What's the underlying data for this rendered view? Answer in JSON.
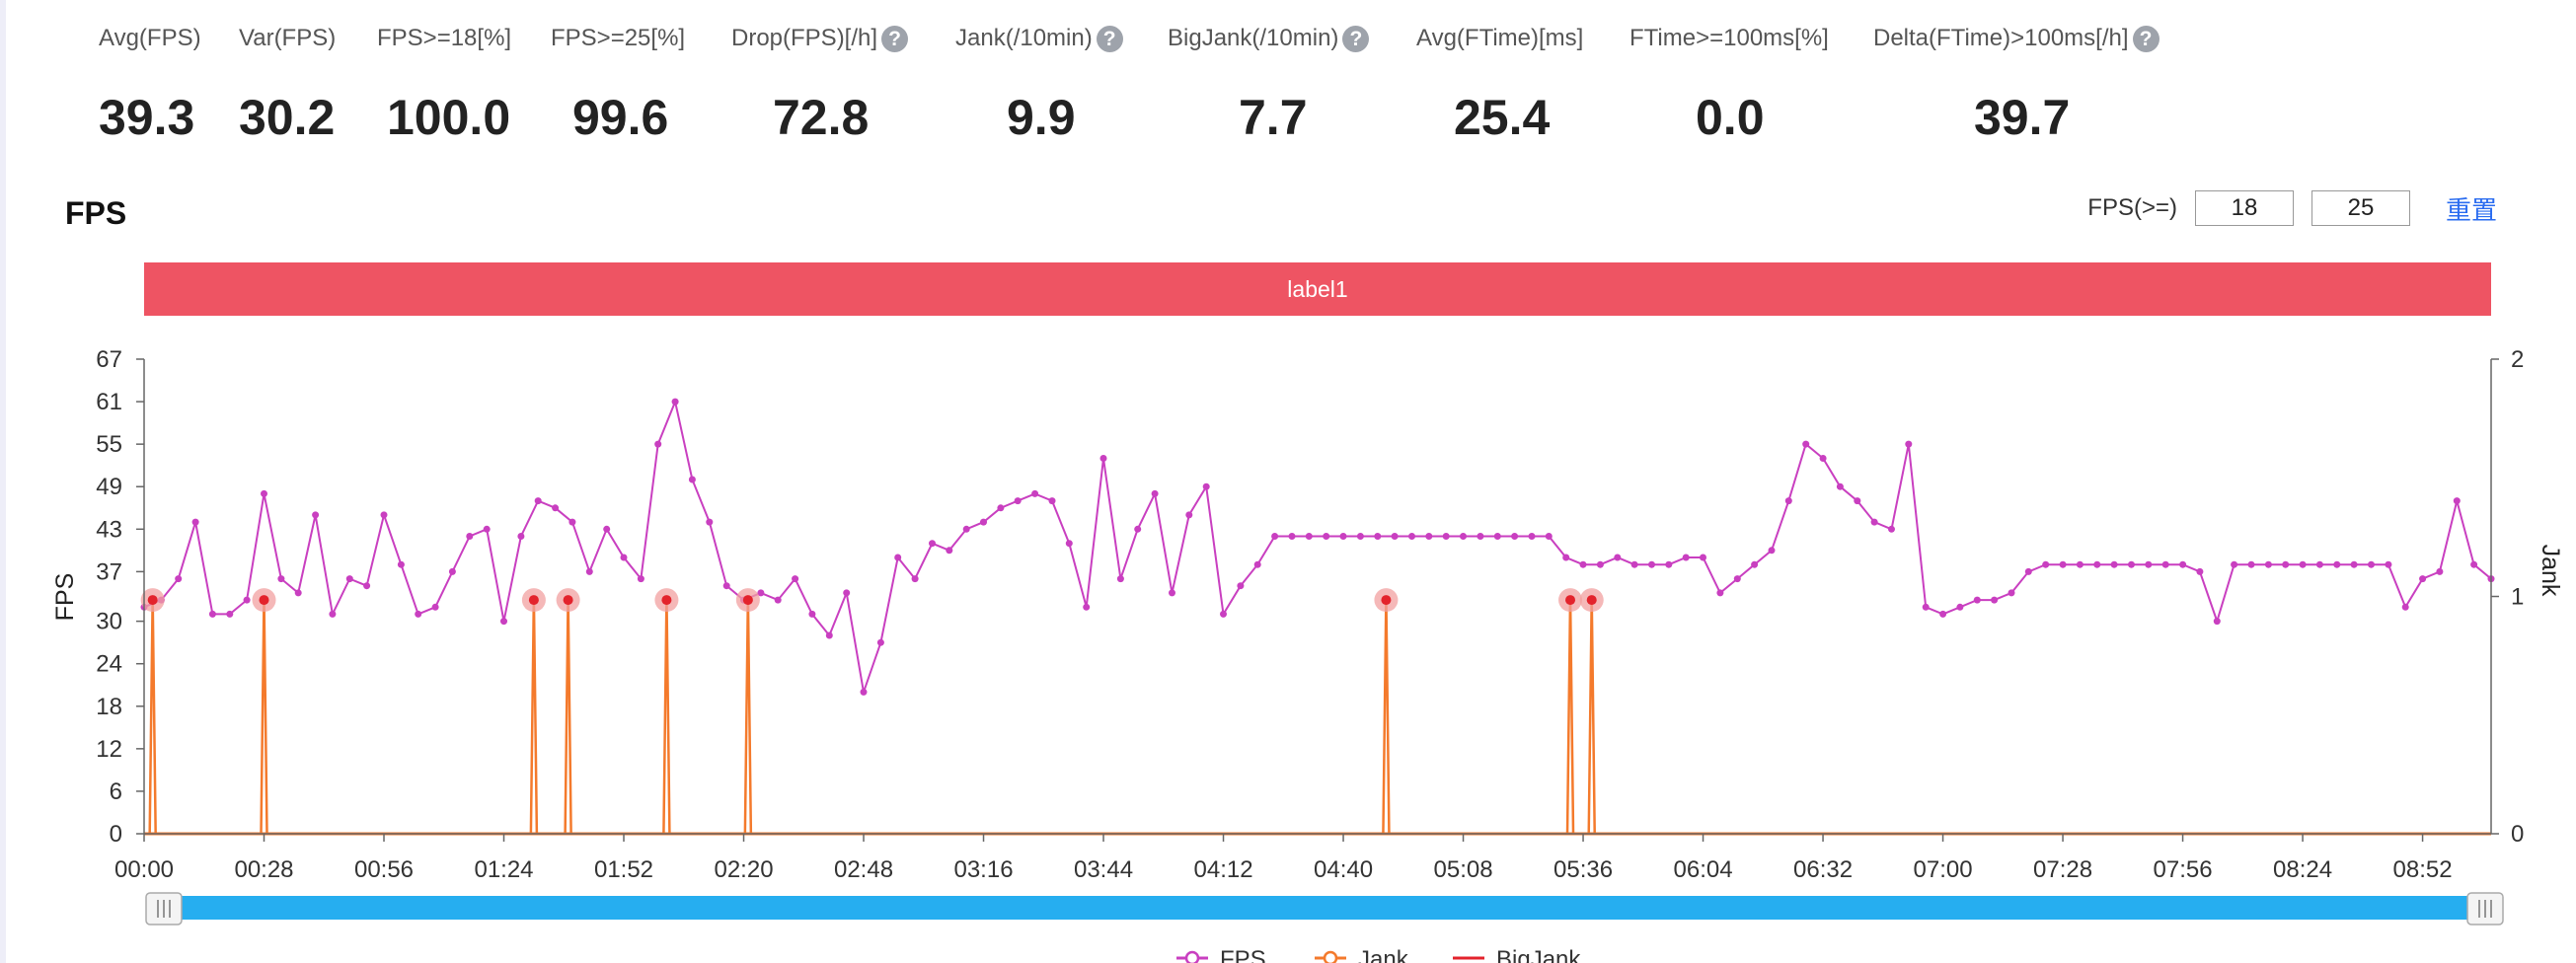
{
  "stats": [
    {
      "label": "Avg(FPS)",
      "value": "39.3",
      "help": false
    },
    {
      "label": "Var(FPS)",
      "value": "30.2",
      "help": false
    },
    {
      "label": "FPS>=18[%]",
      "value": "100.0",
      "help": false
    },
    {
      "label": "FPS>=25[%]",
      "value": "99.6",
      "help": false
    },
    {
      "label": "Drop(FPS)[/h]",
      "value": "72.8",
      "help": true
    },
    {
      "label": "Jank(/10min)",
      "value": "9.9",
      "help": true
    },
    {
      "label": "BigJank(/10min)",
      "value": "7.7",
      "help": true
    },
    {
      "label": "Avg(FTime)[ms]",
      "value": "25.4",
      "help": false
    },
    {
      "label": "FTime>=100ms[%]",
      "value": "0.0",
      "help": false
    },
    {
      "label": "Delta(FTime)>100ms[/h]",
      "value": "39.7",
      "help": true
    }
  ],
  "help_glyph": "?",
  "chart_title": "FPS",
  "threshold": {
    "label": "FPS(>=)",
    "low": "18",
    "high": "25",
    "reset_label": "重置"
  },
  "band_label": "label1",
  "colors": {
    "fps": "#c93fc0",
    "jank": "#f47a2c",
    "bigjank": "#e3232c",
    "band": "#ee5463",
    "slider": "#26aef0",
    "marker": "#f2a0a0"
  },
  "chart_data": {
    "type": "line",
    "xlabel": "",
    "ylabel": "FPS",
    "y2label": "Jank",
    "x_unit": "seconds",
    "xlim": [
      0,
      548
    ],
    "ylim": [
      0,
      67
    ],
    "y2lim": [
      0,
      2
    ],
    "yticks": [
      "0",
      "6",
      "12",
      "18",
      "24",
      "30",
      "37",
      "43",
      "49",
      "55",
      "61",
      "67"
    ],
    "y2ticks": [
      "0",
      "1",
      "2"
    ],
    "xticks": [
      "00:00",
      "00:28",
      "00:56",
      "01:24",
      "01:52",
      "02:20",
      "02:48",
      "03:16",
      "03:44",
      "04:12",
      "04:40",
      "05:08",
      "05:36",
      "06:04",
      "06:32",
      "07:00",
      "07:28",
      "07:56",
      "08:24",
      "08:52"
    ],
    "legend": [
      "FPS",
      "Jank",
      "BigJank"
    ],
    "series": [
      {
        "name": "FPS",
        "x": [
          0,
          4,
          8,
          12,
          16,
          20,
          24,
          28,
          32,
          36,
          40,
          44,
          48,
          52,
          56,
          60,
          64,
          68,
          72,
          76,
          80,
          84,
          88,
          92,
          96,
          100,
          104,
          108,
          112,
          116,
          120,
          124,
          128,
          132,
          136,
          140,
          144,
          148,
          152,
          156,
          160,
          164,
          168,
          172,
          176,
          180,
          184,
          188,
          192,
          196,
          200,
          204,
          208,
          212,
          216,
          220,
          224,
          228,
          232,
          236,
          240,
          244,
          248,
          252,
          256,
          260,
          264,
          268,
          272,
          276,
          280,
          284,
          288,
          292,
          296,
          300,
          304,
          308,
          312,
          316,
          320,
          324,
          328,
          332,
          336,
          340,
          344,
          348,
          352,
          356,
          360,
          364,
          368,
          372,
          376,
          380,
          384,
          388,
          392,
          396,
          400,
          404,
          408,
          412,
          416,
          420,
          424,
          428,
          432,
          436,
          440,
          444,
          448,
          452,
          456,
          460,
          464,
          468,
          472,
          476,
          480,
          484,
          488,
          492,
          496,
          500,
          504,
          508,
          512,
          516,
          520,
          524,
          528,
          532,
          536,
          540,
          544,
          548
        ],
        "y": [
          32,
          33,
          36,
          44,
          31,
          31,
          33,
          48,
          36,
          34,
          45,
          31,
          36,
          35,
          45,
          38,
          31,
          32,
          37,
          42,
          43,
          30,
          42,
          47,
          46,
          44,
          37,
          43,
          39,
          36,
          55,
          61,
          50,
          44,
          35,
          33,
          34,
          33,
          36,
          31,
          28,
          34,
          20,
          27,
          39,
          36,
          41,
          40,
          43,
          44,
          46,
          47,
          48,
          47,
          41,
          32,
          53,
          36,
          43,
          48,
          34,
          45,
          49,
          31,
          35,
          38,
          42,
          42,
          42,
          42,
          42,
          42,
          42,
          42,
          42,
          42,
          42,
          42,
          42,
          42,
          42,
          42,
          42,
          39,
          38,
          38,
          39,
          38,
          38,
          38,
          39,
          39,
          34,
          36,
          38,
          40,
          47,
          55,
          53,
          49,
          47,
          44,
          43,
          55,
          32,
          31,
          32,
          33,
          33,
          34,
          37,
          38,
          38,
          38,
          38,
          38,
          38,
          38,
          38,
          38,
          37,
          30,
          38,
          38,
          38,
          38,
          38,
          38,
          38,
          38,
          38,
          38,
          32,
          36,
          37,
          47,
          38,
          36
        ]
      },
      {
        "name": "Jank",
        "spikes_x": [
          2,
          28,
          91,
          99,
          122,
          141,
          290,
          333,
          338
        ],
        "fps_at_spike": [
          33,
          33,
          33,
          33,
          33,
          33,
          33,
          33,
          33
        ]
      },
      {
        "name": "BigJank",
        "spikes_x": []
      }
    ]
  }
}
